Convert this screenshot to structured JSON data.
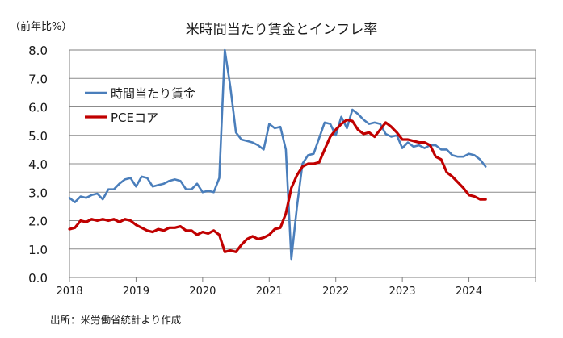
{
  "chart_data": {
    "type": "line",
    "title": "米時間当たり賃金とインフレ率",
    "unit_label": "（前年比%）",
    "source": "出所：米労働省統計より作成",
    "ylim": [
      0,
      8
    ],
    "y_ticks": [
      "0.0",
      "1.0",
      "2.0",
      "3.0",
      "4.0",
      "5.0",
      "6.0",
      "7.0",
      "8.0"
    ],
    "xlim": [
      2018.0,
      2025.0
    ],
    "x_ticks": [
      "2018",
      "2019",
      "2020",
      "2021",
      "2022",
      "2023",
      "2024"
    ],
    "grid": "horizontal",
    "legend_position": "top-left",
    "series": [
      {
        "name": "時間当たり賃金",
        "color": "#4a7ebb",
        "points": [
          [
            2018.0,
            2.8
          ],
          [
            2018.083,
            2.65
          ],
          [
            2018.167,
            2.85
          ],
          [
            2018.25,
            2.8
          ],
          [
            2018.333,
            2.9
          ],
          [
            2018.417,
            2.95
          ],
          [
            2018.5,
            2.75
          ],
          [
            2018.583,
            3.1
          ],
          [
            2018.667,
            3.1
          ],
          [
            2018.75,
            3.3
          ],
          [
            2018.833,
            3.45
          ],
          [
            2018.917,
            3.5
          ],
          [
            2019.0,
            3.2
          ],
          [
            2019.083,
            3.55
          ],
          [
            2019.167,
            3.5
          ],
          [
            2019.25,
            3.2
          ],
          [
            2019.333,
            3.25
          ],
          [
            2019.417,
            3.3
          ],
          [
            2019.5,
            3.4
          ],
          [
            2019.583,
            3.45
          ],
          [
            2019.667,
            3.4
          ],
          [
            2019.75,
            3.1
          ],
          [
            2019.833,
            3.1
          ],
          [
            2019.917,
            3.3
          ],
          [
            2020.0,
            3.0
          ],
          [
            2020.083,
            3.05
          ],
          [
            2020.167,
            3.0
          ],
          [
            2020.25,
            3.5
          ],
          [
            2020.333,
            8.0
          ],
          [
            2020.417,
            6.7
          ],
          [
            2020.5,
            5.1
          ],
          [
            2020.583,
            4.85
          ],
          [
            2020.667,
            4.8
          ],
          [
            2020.75,
            4.75
          ],
          [
            2020.833,
            4.65
          ],
          [
            2020.917,
            4.5
          ],
          [
            2021.0,
            5.4
          ],
          [
            2021.083,
            5.25
          ],
          [
            2021.167,
            5.3
          ],
          [
            2021.25,
            4.5
          ],
          [
            2021.333,
            0.65
          ],
          [
            2021.417,
            2.5
          ],
          [
            2021.5,
            4.0
          ],
          [
            2021.583,
            4.3
          ],
          [
            2021.667,
            4.35
          ],
          [
            2021.75,
            4.9
          ],
          [
            2021.833,
            5.45
          ],
          [
            2021.917,
            5.4
          ],
          [
            2022.0,
            5.0
          ],
          [
            2022.083,
            5.65
          ],
          [
            2022.167,
            5.25
          ],
          [
            2022.25,
            5.9
          ],
          [
            2022.333,
            5.75
          ],
          [
            2022.417,
            5.55
          ],
          [
            2022.5,
            5.4
          ],
          [
            2022.583,
            5.45
          ],
          [
            2022.667,
            5.4
          ],
          [
            2022.75,
            5.05
          ],
          [
            2022.833,
            4.95
          ],
          [
            2022.917,
            5.0
          ],
          [
            2023.0,
            4.55
          ],
          [
            2023.083,
            4.75
          ],
          [
            2023.167,
            4.6
          ],
          [
            2023.25,
            4.65
          ],
          [
            2023.333,
            4.55
          ],
          [
            2023.417,
            4.65
          ],
          [
            2023.5,
            4.65
          ],
          [
            2023.583,
            4.5
          ],
          [
            2023.667,
            4.5
          ],
          [
            2023.75,
            4.3
          ],
          [
            2023.833,
            4.25
          ],
          [
            2023.917,
            4.25
          ],
          [
            2024.0,
            4.35
          ],
          [
            2024.083,
            4.3
          ],
          [
            2024.167,
            4.15
          ],
          [
            2024.25,
            3.9
          ]
        ]
      },
      {
        "name": "PCEコア",
        "color": "#c00000",
        "points": [
          [
            2018.0,
            1.7
          ],
          [
            2018.083,
            1.75
          ],
          [
            2018.167,
            2.0
          ],
          [
            2018.25,
            1.95
          ],
          [
            2018.333,
            2.05
          ],
          [
            2018.417,
            2.0
          ],
          [
            2018.5,
            2.05
          ],
          [
            2018.583,
            2.0
          ],
          [
            2018.667,
            2.05
          ],
          [
            2018.75,
            1.95
          ],
          [
            2018.833,
            2.05
          ],
          [
            2018.917,
            2.0
          ],
          [
            2019.0,
            1.85
          ],
          [
            2019.083,
            1.75
          ],
          [
            2019.167,
            1.65
          ],
          [
            2019.25,
            1.6
          ],
          [
            2019.333,
            1.7
          ],
          [
            2019.417,
            1.65
          ],
          [
            2019.5,
            1.75
          ],
          [
            2019.583,
            1.75
          ],
          [
            2019.667,
            1.8
          ],
          [
            2019.75,
            1.65
          ],
          [
            2019.833,
            1.65
          ],
          [
            2019.917,
            1.5
          ],
          [
            2020.0,
            1.6
          ],
          [
            2020.083,
            1.55
          ],
          [
            2020.167,
            1.65
          ],
          [
            2020.25,
            1.5
          ],
          [
            2020.333,
            0.9
          ],
          [
            2020.417,
            0.95
          ],
          [
            2020.5,
            0.9
          ],
          [
            2020.583,
            1.15
          ],
          [
            2020.667,
            1.35
          ],
          [
            2020.75,
            1.45
          ],
          [
            2020.833,
            1.35
          ],
          [
            2020.917,
            1.4
          ],
          [
            2021.0,
            1.5
          ],
          [
            2021.083,
            1.7
          ],
          [
            2021.167,
            1.75
          ],
          [
            2021.25,
            2.25
          ],
          [
            2021.333,
            3.15
          ],
          [
            2021.417,
            3.6
          ],
          [
            2021.5,
            3.9
          ],
          [
            2021.583,
            4.0
          ],
          [
            2021.667,
            4.0
          ],
          [
            2021.75,
            4.05
          ],
          [
            2021.833,
            4.5
          ],
          [
            2021.917,
            4.95
          ],
          [
            2022.0,
            5.2
          ],
          [
            2022.083,
            5.4
          ],
          [
            2022.167,
            5.55
          ],
          [
            2022.25,
            5.5
          ],
          [
            2022.333,
            5.2
          ],
          [
            2022.417,
            5.05
          ],
          [
            2022.5,
            5.1
          ],
          [
            2022.583,
            4.95
          ],
          [
            2022.667,
            5.2
          ],
          [
            2022.75,
            5.45
          ],
          [
            2022.833,
            5.3
          ],
          [
            2022.917,
            5.1
          ],
          [
            2023.0,
            4.85
          ],
          [
            2023.083,
            4.85
          ],
          [
            2023.167,
            4.8
          ],
          [
            2023.25,
            4.75
          ],
          [
            2023.333,
            4.75
          ],
          [
            2023.417,
            4.65
          ],
          [
            2023.5,
            4.25
          ],
          [
            2023.583,
            4.15
          ],
          [
            2023.667,
            3.7
          ],
          [
            2023.75,
            3.55
          ],
          [
            2023.833,
            3.35
          ],
          [
            2023.917,
            3.15
          ],
          [
            2024.0,
            2.9
          ],
          [
            2024.083,
            2.85
          ],
          [
            2024.167,
            2.75
          ],
          [
            2024.25,
            2.75
          ]
        ]
      }
    ]
  }
}
